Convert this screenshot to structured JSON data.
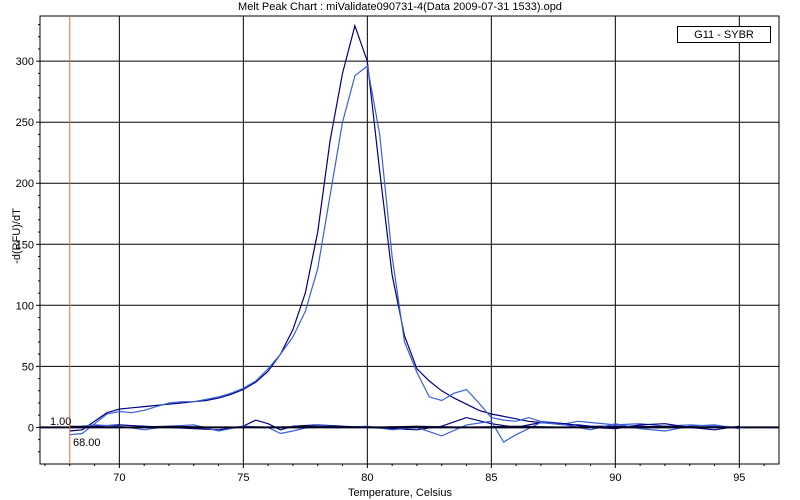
{
  "chart_data": {
    "type": "line",
    "title": "Melt Peak Chart : miValidate090731-4(Data 2009-07-31 1533).opd",
    "xlabel": "Temperature, Celsius",
    "ylabel": "-d(RFU)/dT",
    "xlim": [
      66.8,
      96.6
    ],
    "ylim": [
      -30,
      337
    ],
    "xticks": [
      70,
      75,
      80,
      85,
      90,
      95
    ],
    "yticks": [
      0,
      50,
      100,
      150,
      200,
      250,
      300
    ],
    "grid": true,
    "legend": {
      "entries": [
        "G11 - SYBR"
      ],
      "placement": "top-right"
    },
    "cursor": {
      "x": 68.0,
      "y_label": "1.00",
      "x_label": "68.00"
    },
    "series": [
      {
        "color": "#000080",
        "x": [
          68.0,
          68.5,
          69.0,
          69.5,
          70.0,
          70.5,
          71.0,
          71.5,
          72.0,
          72.5,
          73.0,
          73.5,
          74.0,
          74.5,
          75.0,
          75.5,
          76.0,
          76.5,
          77.0,
          77.5,
          78.0,
          78.5,
          79.0,
          79.5,
          80.0,
          80.5,
          81.0,
          81.5,
          82.0,
          82.5,
          83.0,
          83.5,
          84.0,
          84.5,
          85.0,
          85.5,
          86.0,
          86.5,
          87.0,
          87.5,
          88.0,
          88.5,
          89.0,
          90.0,
          91.0,
          92.0,
          93.0,
          94.0,
          95.0
        ],
        "values": [
          -3,
          -2,
          5,
          12,
          15,
          16,
          17,
          18,
          19,
          20,
          21,
          22,
          24,
          27,
          31,
          37,
          46,
          60,
          80,
          110,
          160,
          235,
          290,
          329,
          300,
          210,
          125,
          75,
          48,
          38,
          30,
          24,
          19,
          14,
          11,
          9,
          7,
          5,
          4,
          3,
          2,
          2,
          1,
          1,
          1,
          0,
          0,
          0,
          0
        ]
      },
      {
        "color": "#3b5fd8",
        "x": [
          68.0,
          68.5,
          69.0,
          69.5,
          70.0,
          70.5,
          71.0,
          71.5,
          72.0,
          72.5,
          73.0,
          73.5,
          74.0,
          74.5,
          75.0,
          75.5,
          76.0,
          76.5,
          77.0,
          77.5,
          78.0,
          78.5,
          79.0,
          79.5,
          80.0,
          80.5,
          81.0,
          81.5,
          82.0,
          82.5,
          83.0,
          83.5,
          84.0,
          84.5,
          85.0,
          85.5,
          86.0,
          86.5,
          87.0,
          87.5,
          88.0,
          88.5,
          89.0,
          90.0,
          91.0,
          92.0,
          93.0,
          94.0,
          95.0
        ],
        "values": [
          -6,
          -5,
          3,
          11,
          13,
          12,
          14,
          17,
          20,
          21,
          21,
          23,
          25,
          28,
          32,
          38,
          48,
          60,
          74,
          95,
          130,
          190,
          250,
          288,
          296,
          240,
          140,
          70,
          45,
          25,
          22,
          28,
          31,
          20,
          8,
          6,
          5,
          8,
          5,
          4,
          3,
          5,
          4,
          2,
          3,
          1,
          2,
          1,
          0
        ]
      },
      {
        "color": "#000080",
        "x": [
          68.0,
          69.0,
          70.0,
          71.0,
          72.0,
          73.0,
          74.0,
          75.0,
          75.5,
          76.0,
          76.5,
          77.0,
          78.0,
          79.0,
          80.0,
          81.0,
          82.0,
          83.0,
          84.0,
          85.0,
          86.0,
          87.0,
          88.0,
          89.0,
          90.0,
          91.0,
          92.0,
          93.0,
          94.0,
          95.0
        ],
        "values": [
          0,
          1,
          2,
          1,
          0,
          -1,
          -2,
          1,
          6,
          3,
          -2,
          1,
          2,
          1,
          0,
          -1,
          -2,
          1,
          8,
          3,
          0,
          4,
          3,
          0,
          -1,
          2,
          3,
          0,
          -2,
          1
        ]
      },
      {
        "color": "#3b5fd8",
        "x": [
          68.0,
          69.0,
          70.0,
          71.0,
          72.0,
          73.0,
          74.0,
          75.0,
          76.0,
          76.5,
          77.0,
          78.0,
          79.0,
          80.0,
          81.0,
          82.0,
          83.0,
          84.0,
          85.0,
          85.5,
          86.0,
          87.0,
          88.0,
          89.0,
          90.0,
          91.0,
          92.0,
          93.0,
          94.0,
          95.0
        ],
        "values": [
          0,
          2,
          1,
          -2,
          1,
          2,
          -3,
          1,
          0,
          -5,
          -3,
          2,
          0,
          1,
          -2,
          0,
          -7,
          2,
          5,
          -12,
          -6,
          4,
          2,
          -2,
          3,
          -1,
          -3,
          1,
          2,
          -1
        ]
      },
      {
        "color": "#1a1a4a",
        "x": [
          68.0,
          70.0,
          72.0,
          74.0,
          76.0,
          78.0,
          80.0,
          82.0,
          84.0,
          86.0,
          88.0,
          90.0,
          92.0,
          94.0,
          95.0
        ],
        "values": [
          1,
          0,
          1,
          0,
          0,
          1,
          0,
          1,
          0,
          1,
          0,
          0,
          1,
          0,
          0
        ]
      }
    ]
  }
}
